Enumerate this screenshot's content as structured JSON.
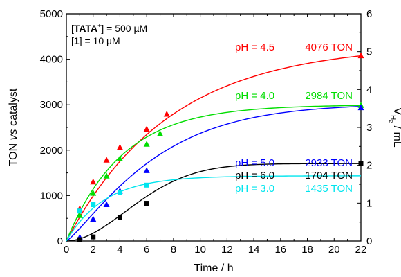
{
  "chart_data": {
    "type": "scatter",
    "xlabel": "Time / h",
    "ylabel": "TON vs catalyst",
    "y2label": "V_H₂ / mL",
    "xlim": [
      0,
      22
    ],
    "ylim": [
      0,
      5000
    ],
    "y2lim": [
      0,
      6
    ],
    "x_ticks": [
      "0",
      "2",
      "4",
      "6",
      "8",
      "10",
      "12",
      "14",
      "16",
      "18",
      "20",
      "22"
    ],
    "y_ticks": [
      "0",
      "1000",
      "2000",
      "3000",
      "4000",
      "5000"
    ],
    "y2_ticks": [
      "0",
      "1",
      "2",
      "3",
      "4",
      "5",
      "6"
    ],
    "grid": false,
    "annotations": [
      "[TATA⁺] = 500 µM",
      "[1] = 10 µM"
    ],
    "series": [
      {
        "name": "pH = 4.5",
        "ton_label": "4076 TON",
        "color": "#ff0000",
        "marker": "triangle",
        "x": [
          1,
          2,
          3,
          4,
          6,
          7.5,
          22
        ],
        "y": [
          710,
          1300,
          1780,
          2060,
          2460,
          2790,
          4076
        ],
        "fit_final": 4076,
        "fit_k": 0.13
      },
      {
        "name": "pH = 4.0",
        "ton_label": "2984 TON",
        "color": "#00dd00",
        "marker": "triangle",
        "x": [
          1,
          2,
          3,
          4,
          6,
          7,
          22
        ],
        "y": [
          560,
          1050,
          1430,
          1810,
          2130,
          2360,
          2984
        ],
        "fit_final": 2984,
        "fit_k": 0.24
      },
      {
        "name": "pH = 5.0",
        "ton_label": "2933 TON",
        "color": "#0000ff",
        "marker": "triangle",
        "x": [
          1,
          2,
          3,
          4,
          6,
          22
        ],
        "y": [
          80,
          480,
          800,
          1100,
          1550,
          2933
        ],
        "fit_final": 2933,
        "fit_k": 0.15
      },
      {
        "name": "pH = 6.0",
        "ton_label": "1704 TON",
        "color": "#000000",
        "marker": "square",
        "x": [
          1,
          2,
          4,
          6,
          22
        ],
        "y": [
          30,
          90,
          520,
          830,
          1704
        ],
        "fit_final": 1704,
        "fit_k": 0.2
      },
      {
        "name": "pH = 3.0",
        "ton_label": "1435 TON",
        "color": "#00e5ee",
        "marker": "square",
        "x": [
          1,
          2,
          4,
          6
        ],
        "y": [
          660,
          800,
          1060,
          1230
        ],
        "fit_final": 1435,
        "fit_k": 0.35
      }
    ]
  }
}
